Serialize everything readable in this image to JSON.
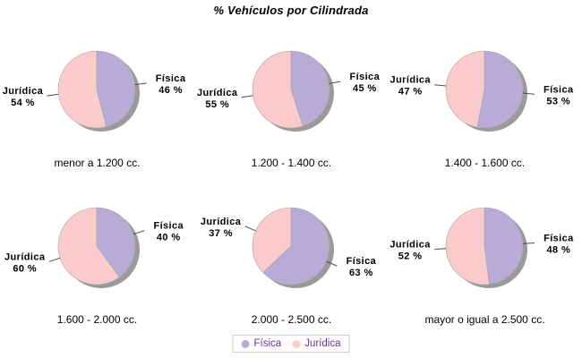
{
  "title": "% Vehículos por Cilindrada",
  "colors": {
    "fisica": "#b8abd6",
    "juridica": "#fbcaca",
    "shadow": "#9a9a9a",
    "slice_edge": "#a6a6a6",
    "leader_line": "#4d4d4d",
    "legend_text": "#663399",
    "legend_border": "#cccccc"
  },
  "legend": {
    "items": [
      {
        "label": "Física",
        "color": "#b8abd6"
      },
      {
        "label": "Jurídica",
        "color": "#fbcaca"
      }
    ]
  },
  "chart_data": {
    "type": "pie",
    "title": "% Vehículos por Cilindrada",
    "series_labels": [
      "Física",
      "Jurídica"
    ],
    "value_suffix": " %",
    "pies": [
      {
        "caption": "menor a 1.200 cc.",
        "fisica": 46,
        "juridica": 54
      },
      {
        "caption": "1.200 - 1.400 cc.",
        "fisica": 45,
        "juridica": 55
      },
      {
        "caption": "1.400 - 1.600 cc.",
        "fisica": 53,
        "juridica": 47
      },
      {
        "caption": "1.600 - 2.000 cc.",
        "fisica": 40,
        "juridica": 60
      },
      {
        "caption": "2.000 - 2.500 cc.",
        "fisica": 63,
        "juridica": 37
      },
      {
        "caption": "mayor o igual a 2.500 cc.",
        "fisica": 48,
        "juridica": 52
      }
    ]
  }
}
